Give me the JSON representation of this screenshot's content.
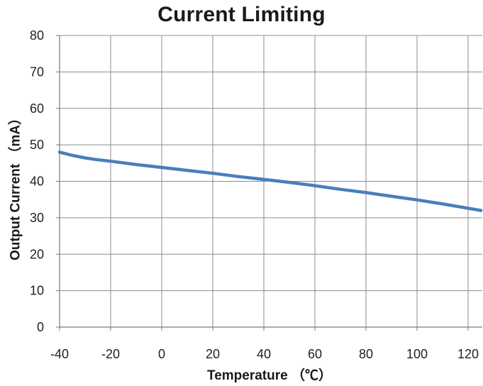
{
  "chart_data": {
    "type": "line",
    "title": "Current Limiting",
    "xlabel": "Temperature （℃）",
    "ylabel": "Output Current  （mA）",
    "xlim": [
      -40,
      125
    ],
    "ylim": [
      0,
      80
    ],
    "x_ticks": [
      -40,
      -20,
      0,
      20,
      40,
      60,
      80,
      100,
      120
    ],
    "y_ticks": [
      0,
      10,
      20,
      30,
      40,
      50,
      60,
      70,
      80
    ],
    "grid": true,
    "series": [
      {
        "color": "#4a7ebb",
        "x": [
          -40,
          -35,
          -30,
          -25,
          -20,
          -10,
          0,
          10,
          20,
          30,
          40,
          50,
          60,
          70,
          80,
          90,
          100,
          110,
          120,
          125
        ],
        "y": [
          48.0,
          47.1,
          46.4,
          45.9,
          45.5,
          44.6,
          43.8,
          43.0,
          42.2,
          41.3,
          40.5,
          39.7,
          38.8,
          37.8,
          36.9,
          35.9,
          34.9,
          33.8,
          32.6,
          32.0
        ]
      }
    ]
  }
}
